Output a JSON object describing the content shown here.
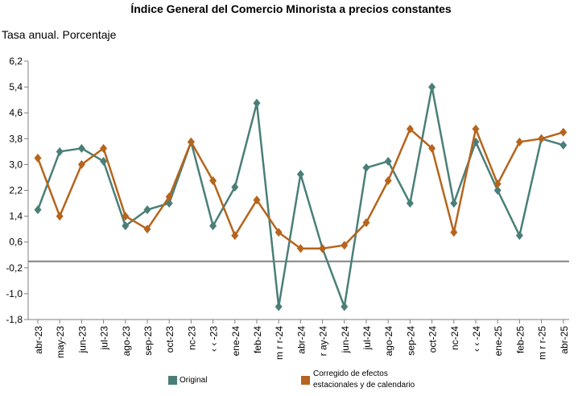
{
  "chart_data": {
    "type": "line",
    "title": "Índice General del Comercio Minorista a precios constantes",
    "subtitle": "Tasa anual. Porcentaje",
    "categories": [
      "abr-23",
      "may-23",
      "jun-23",
      "jul-23",
      "ago-23",
      "sep-23",
      "oct-23",
      "nov-23",
      "dic-23",
      "ene-24",
      "feb-24",
      "mar-24",
      "abr-24",
      "may-24",
      "jun-24",
      "jul-24",
      "ago-24",
      "sep-24",
      "oct-24",
      "nov-24",
      "dic-24",
      "ene-25",
      "feb-25",
      "mar-25",
      "abr-25"
    ],
    "x_tick_labels": [
      "abr-23",
      "may-23",
      "jun-23",
      "jul-23",
      "ago-23",
      "sep-23",
      "oct-23",
      "nc-23",
      "‹ ‹ -23",
      "ene-24",
      "feb-24",
      "m r r-24",
      "abr-24",
      "r ay-24",
      "jun-24",
      "jul-24",
      "ago-24",
      "sep-24",
      "oct-24",
      "nc-24",
      "‹ ‹ -24",
      "ene-25",
      "feb-25",
      "m r r-25",
      "abr-25"
    ],
    "y_ticks": [
      "6,2",
      "5,4",
      "4,6",
      "3,8",
      "3,0",
      "2,2",
      "1,4",
      "0,6",
      "-0,2",
      "-1,0",
      "-1,8"
    ],
    "ylim": [
      -1.8,
      6.2
    ],
    "reference_line": 0,
    "grid": false,
    "legend_position": "bottom",
    "series": [
      {
        "name": "Original",
        "color": "#4a7f78",
        "values": [
          1.6,
          3.4,
          3.5,
          3.1,
          1.1,
          1.6,
          1.8,
          3.7,
          1.1,
          2.3,
          4.9,
          -1.4,
          2.7,
          0.4,
          -1.4,
          2.9,
          3.1,
          1.8,
          5.4,
          1.8,
          3.7,
          2.2,
          0.8,
          3.8,
          3.6
        ]
      },
      {
        "name": "Corregido de efectos estacionales y de calendario",
        "color": "#b5651d",
        "values": [
          3.2,
          1.4,
          3.0,
          3.5,
          1.4,
          1.0,
          2.0,
          3.7,
          2.5,
          0.8,
          1.9,
          0.9,
          0.4,
          0.4,
          0.5,
          1.2,
          2.5,
          4.1,
          3.5,
          0.9,
          4.1,
          2.4,
          3.7,
          3.8,
          4.0
        ]
      }
    ]
  },
  "legend": {
    "original_label": "Original",
    "corrected_label_line1": "Corregido de efectos",
    "corrected_label_line2": "estacionales y de calendario"
  }
}
